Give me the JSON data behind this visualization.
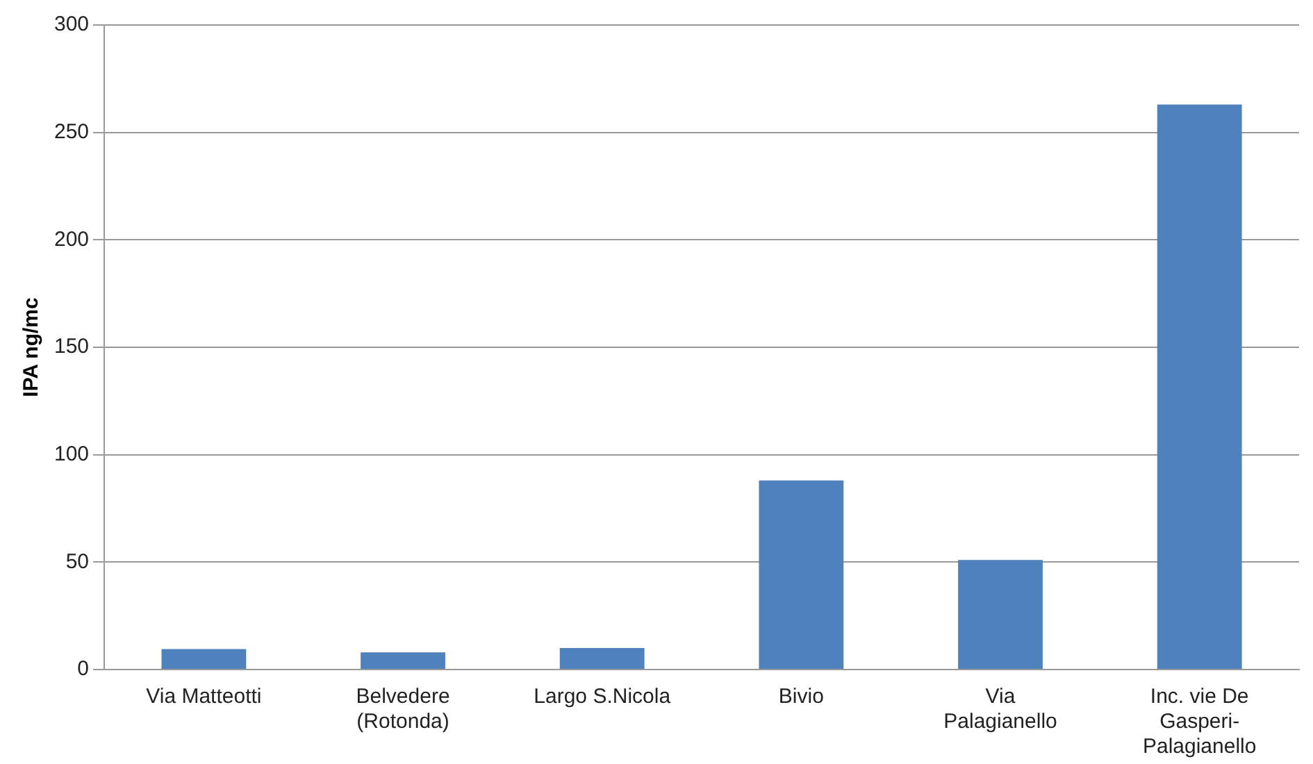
{
  "chart_data": {
    "type": "bar",
    "ylabel": "IPA ng/mc",
    "categories": [
      "Via Matteotti",
      "Belvedere (Rotonda)",
      "Largo S.Nicola",
      "Bivio",
      "Via Palagianello",
      "Inc. vie De Gasperi-Palagianello"
    ],
    "values": [
      9.5,
      8,
      10,
      88,
      51,
      263
    ],
    "color": "#4f81bd",
    "ylim": [
      0,
      300
    ],
    "yticks": [
      0,
      50,
      100,
      150,
      200,
      250,
      300
    ],
    "grid": "y"
  }
}
